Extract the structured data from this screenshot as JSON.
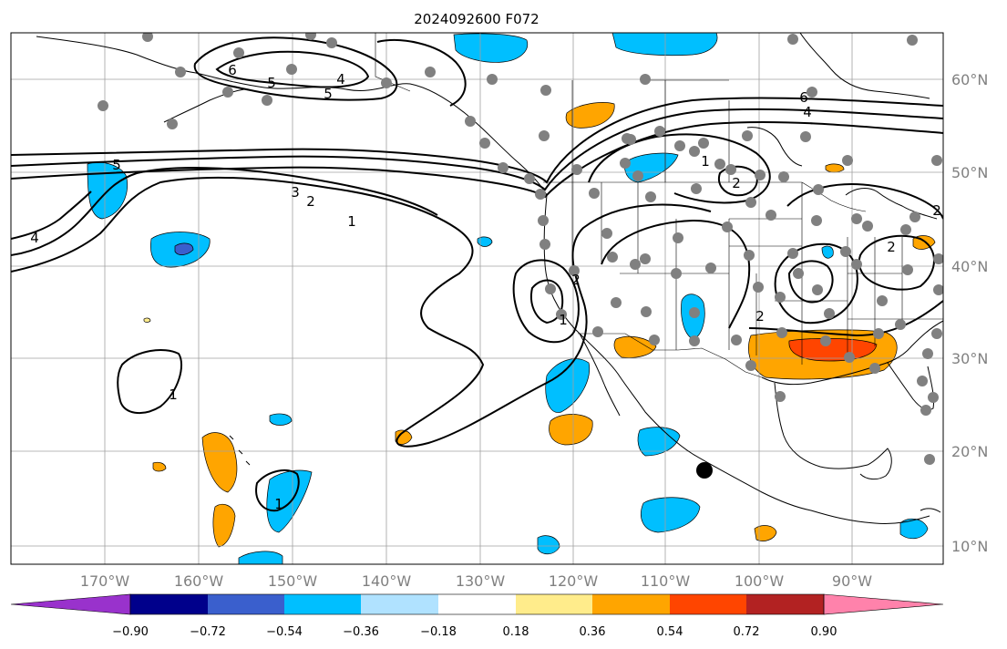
{
  "title": "2024092600 F072",
  "map": {
    "lon_labels": [
      "170°W",
      "160°W",
      "150°W",
      "140°W",
      "130°W",
      "120°W",
      "110°W",
      "100°W",
      "90°W"
    ],
    "lat_labels": [
      "10°N",
      "20°N",
      "30°N",
      "40°N",
      "50°N",
      "60°N"
    ],
    "contour_labels": [
      "6",
      "5",
      "4",
      "3",
      "2",
      "1",
      "5",
      "6",
      "4",
      "2",
      "1",
      "2",
      "1",
      "2",
      "2",
      "2",
      "1",
      "1",
      "4",
      "5"
    ]
  },
  "colorbar": {
    "tick_labels": [
      "−0.90",
      "−0.72",
      "−0.54",
      "−0.36",
      "−0.18",
      "0.18",
      "0.36",
      "0.54",
      "0.72",
      "0.90"
    ],
    "colors": [
      "#9932cc",
      "#00008b",
      "#3a5fcd",
      "#00bfff",
      "#b0e2ff",
      "#ffffff",
      "#ffec8b",
      "#ffa500",
      "#ff4500",
      "#b22222",
      "#ff82ab"
    ]
  },
  "colors": {
    "station_marker": "#808080",
    "gridline": "#a0a0a0",
    "contour": "#000000",
    "axis_label": "#808080"
  }
}
